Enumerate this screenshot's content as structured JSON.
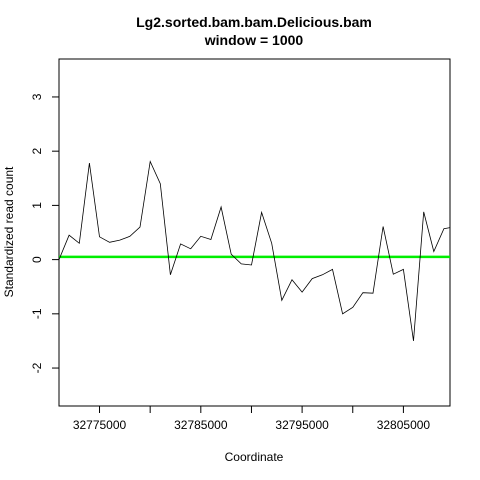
{
  "chart_data": {
    "type": "line",
    "title": "Lg2.sorted.bam.bam.Delicious.bam",
    "subtitle": "window = 1000",
    "xlabel": "Coordinate",
    "ylabel": "Standardized read count",
    "xlim": [
      32771000,
      32809600
    ],
    "ylim": [
      -2.7,
      3.7
    ],
    "grid": false,
    "legend": "none",
    "x_ticks": [
      32775000,
      32780000,
      32785000,
      32790000,
      32795000,
      32800000,
      32805000
    ],
    "x_tick_labels": [
      "32775000",
      "",
      "32785000",
      "",
      "32795000",
      "",
      "32805000"
    ],
    "y_ticks": [
      -2,
      -1,
      0,
      1,
      2,
      3
    ],
    "y_tick_labels": [
      "-2",
      "-1",
      "0",
      "1",
      "2",
      "3"
    ],
    "series": [
      {
        "color": "#000000",
        "x": [
          32771000,
          32772000,
          32773000,
          32774000,
          32775000,
          32776000,
          32777000,
          32778000,
          32779000,
          32780000,
          32781000,
          32782000,
          32783000,
          32784000,
          32785000,
          32786000,
          32787000,
          32788000,
          32789000,
          32790000,
          32791000,
          32792000,
          32793000,
          32794000,
          32795000,
          32796000,
          32797000,
          32798000,
          32799000,
          32800000,
          32801000,
          32802000,
          32803000,
          32804000,
          32805000,
          32806000,
          32807000,
          32808000,
          32809000,
          32809600
        ],
        "y": [
          0.0,
          0.45,
          0.3,
          1.78,
          0.42,
          0.32,
          0.36,
          0.43,
          0.6,
          1.81,
          1.4,
          -0.28,
          0.29,
          0.2,
          0.43,
          0.37,
          0.97,
          0.1,
          -0.08,
          -0.1,
          0.87,
          0.3,
          -0.75,
          -0.37,
          -0.6,
          -0.35,
          -0.28,
          -0.18,
          -1.0,
          -0.88,
          -0.61,
          -0.62,
          0.61,
          -0.27,
          -0.18,
          -1.5,
          0.88,
          0.15,
          0.57,
          0.59
        ]
      }
    ],
    "reference_line": {
      "y": 0.05,
      "color": "#00ee00"
    }
  }
}
